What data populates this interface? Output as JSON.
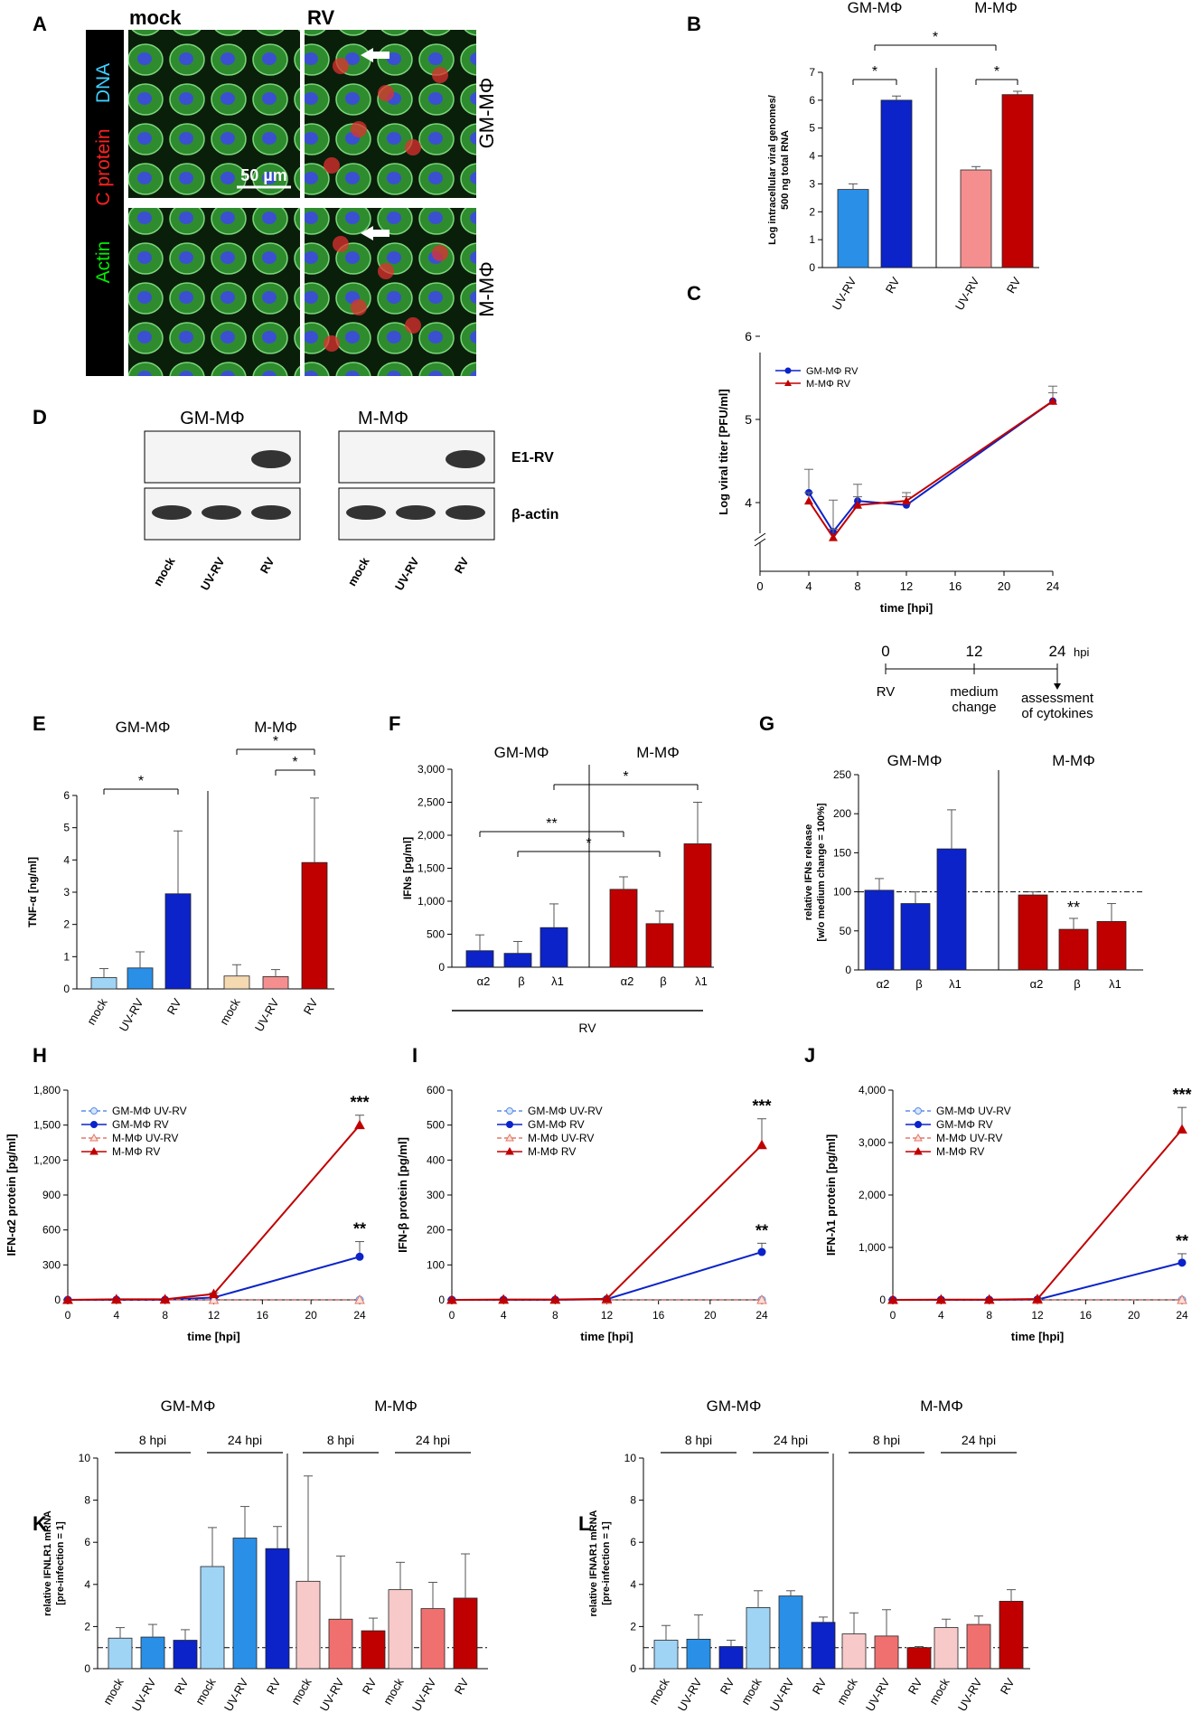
{
  "colors": {
    "gm_light": "#9fd4f5",
    "gm_mid": "#2a8fe6",
    "gm_dark": "#0b23c9",
    "m_light": "#f7c9c9",
    "m_mid": "#f07070",
    "m_dark": "#c00000",
    "tnf_m_mock": "#f5d9b0"
  },
  "panelA": {
    "label": "A",
    "col_mock": "mock",
    "col_rv": "RV",
    "side_actin": "Actin",
    "side_c": "C protein",
    "side_dna": "DNA",
    "row1": "GM-MΦ",
    "row2": "M-MΦ",
    "scale": "50 µm"
  },
  "panelD": {
    "label": "D",
    "group1": "GM-MΦ",
    "group2": "M-MΦ",
    "band1": "E1-RV",
    "band2": "β-actin",
    "lanes": [
      "mock",
      "UV-RV",
      "RV"
    ]
  },
  "schematic": {
    "t0": "0",
    "t12": "12",
    "t24": "24",
    "hpi": "hpi",
    "rv": "RV",
    "medium1": "medium",
    "medium2": "change",
    "assess1": "assessment",
    "assess2": "of cytokines"
  },
  "chart_data": [
    {
      "id": "B",
      "type": "bar",
      "group_labels": [
        "GM-MΦ",
        "M-MΦ"
      ],
      "categories": [
        "UV-RV",
        "RV",
        "UV-RV",
        "RV"
      ],
      "values": [
        2.8,
        6.0,
        3.5,
        6.2
      ],
      "errors": [
        0.2,
        0.15,
        0.12,
        0.12
      ],
      "ylabel_1": "Log intracellular viral genomes/",
      "ylabel_2": "500 ng total RNA",
      "ylim": [
        0,
        7
      ],
      "yticks": [
        "0",
        "1",
        "2",
        "3",
        "4",
        "5",
        "6",
        "7"
      ],
      "significance": [
        "*",
        "*",
        "*"
      ]
    },
    {
      "id": "C",
      "type": "line",
      "x": [
        4,
        6,
        8,
        12,
        24
      ],
      "series": [
        {
          "name": "GM-MΦ RV",
          "values": [
            4.12,
            3.65,
            4.02,
            3.97,
            5.22
          ],
          "errors": [
            0.28,
            0.38,
            0.2,
            0.1,
            0.18
          ]
        },
        {
          "name": "M-MΦ RV",
          "values": [
            4.02,
            3.58,
            3.97,
            4.02,
            5.22
          ],
          "errors": [
            0.1,
            0.1,
            0.1,
            0.1,
            0.1
          ]
        }
      ],
      "xlabel": "time [hpi]",
      "ylabel": "Log viral titer [PFU/ml]",
      "ylim": [
        3.5,
        6
      ],
      "yticks": [
        "4",
        "5",
        "6"
      ],
      "xticks": [
        "0",
        "4",
        "8",
        "12",
        "16",
        "20",
        "24"
      ]
    },
    {
      "id": "E",
      "type": "bar",
      "group_labels": [
        "GM-MΦ",
        "M-MΦ"
      ],
      "categories": [
        "mock",
        "UV-RV",
        "RV",
        "mock",
        "UV-RV",
        "RV"
      ],
      "values": [
        0.35,
        0.65,
        2.95,
        0.4,
        0.38,
        3.92
      ],
      "errors": [
        0.28,
        0.5,
        1.95,
        0.35,
        0.22,
        2.0
      ],
      "ylabel": "TNF-α [ng/ml]",
      "ylim": [
        0,
        6
      ],
      "yticks": [
        "0",
        "1",
        "2",
        "3",
        "4",
        "5",
        "6"
      ],
      "significance": [
        "*",
        "*",
        "*"
      ]
    },
    {
      "id": "F",
      "type": "bar",
      "group_labels": [
        "GM-MΦ",
        "M-MΦ"
      ],
      "categories": [
        "α2",
        "β",
        "λ1",
        "α2",
        "β",
        "λ1"
      ],
      "values": [
        250,
        210,
        600,
        1180,
        660,
        1870
      ],
      "errors": [
        240,
        180,
        360,
        190,
        190,
        630
      ],
      "ylabel": "IFNs [pg/ml]",
      "xgroup_label": "RV",
      "ylim": [
        0,
        3000
      ],
      "yticks": [
        "0",
        "500",
        "1,000",
        "1,500",
        "2,000",
        "2,500",
        "3,000"
      ],
      "significance": [
        "**",
        "*",
        "*"
      ]
    },
    {
      "id": "G",
      "type": "bar",
      "group_labels": [
        "GM-MΦ",
        "M-MΦ"
      ],
      "categories": [
        "α2",
        "β",
        "λ1",
        "α2",
        "β",
        "λ1"
      ],
      "values": [
        102,
        85,
        155,
        96,
        52,
        62
      ],
      "errors": [
        15,
        15,
        50,
        4,
        14,
        23
      ],
      "ylabel_1": "relative IFNs release",
      "ylabel_2": "[w/o medium change = 100%]",
      "ylim": [
        0,
        250
      ],
      "yticks": [
        "0",
        "50",
        "100",
        "150",
        "200",
        "250"
      ],
      "reference_line": 100,
      "significance": [
        "**"
      ]
    },
    {
      "id": "H",
      "type": "line",
      "x": [
        0,
        4,
        8,
        12,
        24
      ],
      "series": [
        {
          "name": "GM-MΦ UV-RV",
          "values": [
            0,
            0,
            0,
            0,
            0
          ]
        },
        {
          "name": "GM-MΦ RV",
          "values": [
            0,
            0,
            0,
            20,
            370
          ],
          "errors": [
            0,
            0,
            0,
            5,
            130
          ]
        },
        {
          "name": "M-MΦ UV-RV",
          "values": [
            0,
            0,
            0,
            0,
            0
          ]
        },
        {
          "name": "M-MΦ RV",
          "values": [
            0,
            5,
            5,
            50,
            1500
          ],
          "errors": [
            0,
            0,
            0,
            10,
            85
          ]
        }
      ],
      "xlabel": "time [hpi]",
      "ylabel": "IFN-α2 protein [pg/ml]",
      "ylim": [
        0,
        1800
      ],
      "yticks": [
        "0",
        "300",
        "600",
        "900",
        "1,200",
        "1,500",
        "1,800"
      ],
      "xticks": [
        "0",
        "4",
        "8",
        "12",
        "16",
        "20",
        "24"
      ],
      "annotations": [
        "***",
        "**"
      ]
    },
    {
      "id": "I",
      "type": "line",
      "x": [
        0,
        4,
        8,
        12,
        24
      ],
      "series": [
        {
          "name": "GM-MΦ UV-RV",
          "values": [
            0,
            0,
            0,
            0,
            0
          ]
        },
        {
          "name": "GM-MΦ RV",
          "values": [
            0,
            0,
            0,
            2,
            137
          ],
          "errors": [
            0,
            0,
            0,
            2,
            25
          ]
        },
        {
          "name": "M-MΦ UV-RV",
          "values": [
            0,
            0,
            0,
            0,
            0
          ]
        },
        {
          "name": "M-MΦ RV",
          "values": [
            0,
            1,
            1,
            3,
            443
          ],
          "errors": [
            0,
            0,
            0,
            3,
            75
          ]
        }
      ],
      "xlabel": "time [hpi]",
      "ylabel": "IFN-β protein [pg/ml]",
      "ylim": [
        0,
        600
      ],
      "yticks": [
        "0",
        "100",
        "200",
        "300",
        "400",
        "500",
        "600"
      ],
      "xticks": [
        "0",
        "4",
        "8",
        "12",
        "16",
        "20",
        "24"
      ],
      "annotations": [
        "***",
        "**"
      ]
    },
    {
      "id": "J",
      "type": "line",
      "x": [
        0,
        4,
        8,
        12,
        24
      ],
      "series": [
        {
          "name": "GM-MΦ UV-RV",
          "values": [
            0,
            0,
            0,
            0,
            0
          ]
        },
        {
          "name": "GM-MΦ RV",
          "values": [
            0,
            0,
            0,
            5,
            710
          ],
          "errors": [
            0,
            0,
            0,
            5,
            170
          ]
        },
        {
          "name": "M-MΦ UV-RV",
          "values": [
            0,
            0,
            0,
            0,
            0
          ]
        },
        {
          "name": "M-MΦ RV",
          "values": [
            0,
            5,
            5,
            15,
            3250
          ],
          "errors": [
            0,
            0,
            0,
            5,
            420
          ]
        }
      ],
      "xlabel": "time [hpi]",
      "ylabel": "IFN-λ1 protein [pg/ml]",
      "ylim": [
        0,
        4000
      ],
      "yticks": [
        "0",
        "1,000",
        "2,000",
        "3,000",
        "4,000"
      ],
      "xticks": [
        "0",
        "4",
        "8",
        "12",
        "16",
        "20",
        "24"
      ],
      "annotations": [
        "***",
        "**"
      ]
    },
    {
      "id": "K",
      "type": "bar",
      "group_labels": [
        "GM-MΦ",
        "M-MΦ"
      ],
      "time_labels": [
        "8 hpi",
        "24 hpi",
        "8 hpi",
        "24 hpi"
      ],
      "categories": [
        "mock",
        "UV-RV",
        "RV",
        "mock",
        "UV-RV",
        "RV",
        "mock",
        "UV-RV",
        "RV",
        "mock",
        "UV-RV",
        "RV"
      ],
      "values": [
        1.45,
        1.5,
        1.35,
        4.85,
        6.2,
        5.7,
        4.15,
        2.35,
        1.8,
        3.75,
        2.85,
        3.35
      ],
      "errors": [
        0.5,
        0.6,
        0.5,
        1.85,
        1.5,
        1.05,
        5.0,
        3.0,
        0.6,
        1.3,
        1.25,
        2.1
      ],
      "ylabel_1": "relative IFNLR1 mRNA",
      "ylabel_2": "[pre-infection = 1]",
      "ylim": [
        0,
        10
      ],
      "yticks": [
        "0",
        "2",
        "4",
        "6",
        "8",
        "10"
      ],
      "reference_line": 1
    },
    {
      "id": "L",
      "type": "bar",
      "group_labels": [
        "GM-MΦ",
        "M-MΦ"
      ],
      "time_labels": [
        "8 hpi",
        "24 hpi",
        "8 hpi",
        "24 hpi"
      ],
      "categories": [
        "mock",
        "UV-RV",
        "RV",
        "mock",
        "UV-RV",
        "RV",
        "mock",
        "UV-RV",
        "RV",
        "mock",
        "UV-RV",
        "RV"
      ],
      "values": [
        1.35,
        1.4,
        1.05,
        2.9,
        3.45,
        2.2,
        1.65,
        1.55,
        1.0,
        1.95,
        2.1,
        3.2
      ],
      "errors": [
        0.7,
        1.15,
        0.3,
        0.8,
        0.25,
        0.25,
        1.0,
        1.25,
        0.05,
        0.4,
        0.4,
        0.55
      ],
      "ylabel_1": "relative IFNAR1 mRNA",
      "ylabel_2": "[pre-infection = 1]",
      "ylim": [
        0,
        10
      ],
      "yticks": [
        "0",
        "2",
        "4",
        "6",
        "8",
        "10"
      ],
      "reference_line": 1
    }
  ]
}
